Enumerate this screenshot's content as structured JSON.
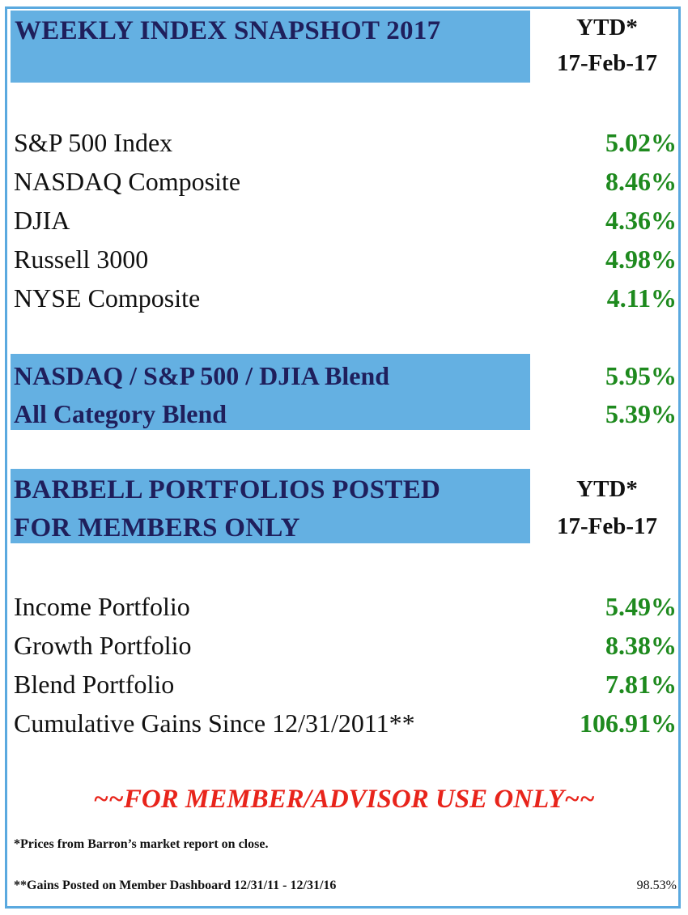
{
  "title": "WEEKLY INDEX SNAPSHOT 2017",
  "ytd_header": {
    "label": "YTD*",
    "date": "17-Feb-17"
  },
  "indexes": [
    {
      "name": "S&P 500 Index",
      "value": "5.02%"
    },
    {
      "name": "NASDAQ Composite",
      "value": "8.46%"
    },
    {
      "name": "DJIA",
      "value": "4.36%"
    },
    {
      "name": "Russell 3000",
      "value": "4.98%"
    },
    {
      "name": "NYSE Composite",
      "value": "4.11%"
    }
  ],
  "blends": [
    {
      "name": "NASDAQ / S&P 500 / DJIA Blend",
      "value": "5.95%"
    },
    {
      "name": "All Category Blend",
      "value": "5.39%"
    }
  ],
  "barbell_header": {
    "line1": "BARBELL PORTFOLIOS POSTED",
    "line2": "FOR MEMBERS ONLY"
  },
  "barbell_ytd": {
    "label": "YTD*",
    "date": "17-Feb-17"
  },
  "portfolios": [
    {
      "name": "Income Portfolio",
      "value": "5.49%"
    },
    {
      "name": "Growth Portfolio",
      "value": "8.38%"
    },
    {
      "name": "Blend Portfolio",
      "value": "7.81%"
    },
    {
      "name": "Cumulative Gains Since 12/31/2011**",
      "value": "106.91%"
    }
  ],
  "notice": "~~FOR MEMBER/ADVISOR USE ONLY~~",
  "footnotes": {
    "prices": "*Prices from Barron’s market report on close.",
    "gains": "**Gains Posted on Member Dashboard 12/31/11 - 12/31/16",
    "gains_value": "98.53%"
  },
  "colors": {
    "header_band": "#64b0e2",
    "frame": "#5aa9df",
    "positive_value": "#1e8a1e",
    "notice": "#e8241b"
  }
}
